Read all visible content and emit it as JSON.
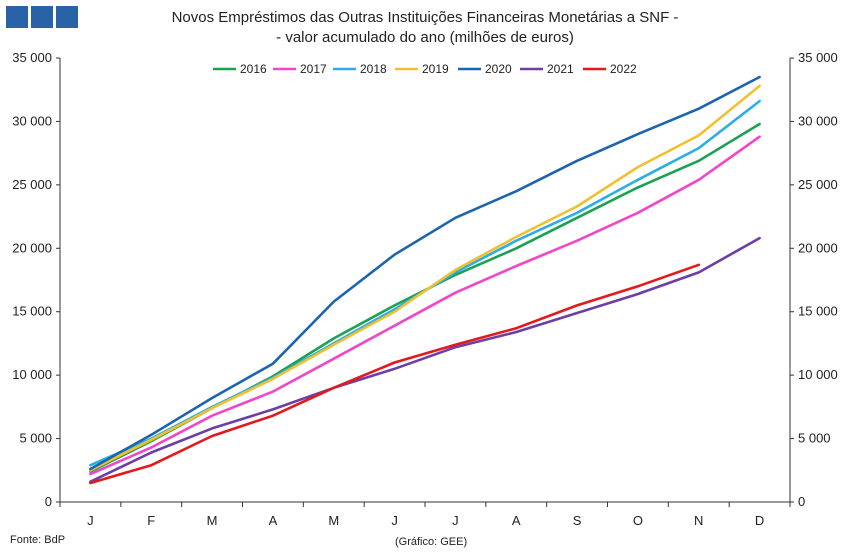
{
  "title_line1": "Novos Empréstimos das Outras Instituições Financeiras Monetárias a SNF -",
  "title_line2": "- valor acumulado do ano (milhões de euros)",
  "source": "Fonte: BdP",
  "credit": "(Gráfico: GEE)",
  "chart_data": {
    "type": "line",
    "title": "Novos Empréstimos das Outras Instituições Financeiras Monetárias a SNF - - valor acumulado do ano (milhões de euros)",
    "categories": [
      "J",
      "F",
      "M",
      "A",
      "M",
      "J",
      "J",
      "A",
      "S",
      "O",
      "N",
      "D"
    ],
    "ylim": [
      0,
      35000
    ],
    "yticks": [
      "0",
      "5 000",
      "10 000",
      "15 000",
      "20 000",
      "25 000",
      "30 000",
      "35 000"
    ],
    "ytick_values": [
      0,
      5000,
      10000,
      15000,
      20000,
      25000,
      30000,
      35000
    ],
    "legend_position": "top",
    "grid": false,
    "series": [
      {
        "name": "2016",
        "color": "#1aa152",
        "values": [
          2400,
          4800,
          7400,
          9900,
          12900,
          15500,
          17900,
          20000,
          22400,
          24800,
          26900,
          29800
        ]
      },
      {
        "name": "2017",
        "color": "#f046c8",
        "values": [
          2200,
          4300,
          6800,
          8700,
          11300,
          13900,
          16500,
          18600,
          20600,
          22800,
          25400,
          28800
        ]
      },
      {
        "name": "2018",
        "color": "#2baee6",
        "values": [
          2900,
          5000,
          7500,
          9800,
          12500,
          15200,
          18100,
          20600,
          22800,
          25400,
          27900,
          31600
        ]
      },
      {
        "name": "2019",
        "color": "#f2bf2f",
        "values": [
          2500,
          4900,
          7400,
          9700,
          12400,
          15000,
          18300,
          20900,
          23300,
          26400,
          28900,
          32800
        ]
      },
      {
        "name": "2020",
        "color": "#1c64b0",
        "values": [
          2600,
          5300,
          8200,
          10900,
          15800,
          19500,
          22400,
          24500,
          26900,
          29000,
          31000,
          33500
        ]
      },
      {
        "name": "2021",
        "color": "#6c3ea6",
        "values": [
          1600,
          3900,
          5800,
          7300,
          9000,
          10500,
          12200,
          13400,
          14900,
          16400,
          18100,
          20800
        ]
      },
      {
        "name": "2022",
        "color": "#e3191c",
        "values": [
          1500,
          2900,
          5200,
          6800,
          9000,
          11000,
          12400,
          13700,
          15500,
          17000,
          18700,
          null
        ]
      }
    ]
  }
}
